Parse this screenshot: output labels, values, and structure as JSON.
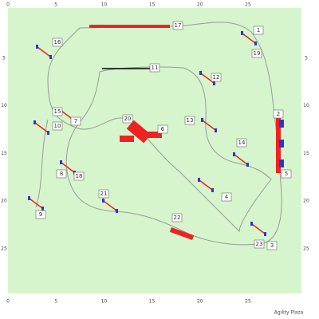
{
  "title": "Agility Plaza",
  "top_axis": [
    0,
    5,
    10,
    15,
    20,
    25
  ],
  "bottom_axis": [
    0,
    5,
    10,
    15,
    20,
    25
  ],
  "left_axis": [
    5,
    10,
    15,
    20,
    25
  ],
  "right_axis": [
    5,
    10,
    15,
    20,
    25
  ],
  "obstacles": [
    "1",
    "2",
    "3",
    "4",
    "5",
    "6",
    "7",
    "8",
    "9",
    "10",
    "11",
    "12",
    "13",
    "14",
    "15",
    "16",
    "17",
    "18",
    "19",
    "20",
    "21",
    "22",
    "23"
  ]
}
